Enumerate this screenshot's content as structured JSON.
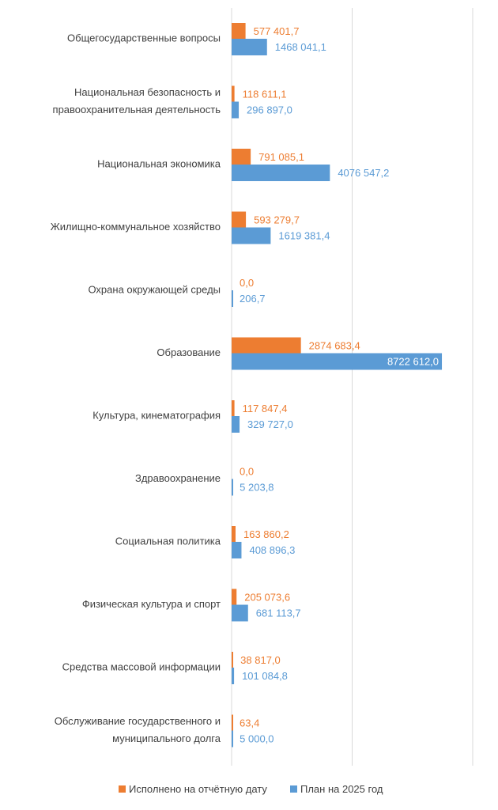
{
  "chart_data": {
    "type": "bar",
    "orientation": "horizontal",
    "categories": [
      [
        "Общегосударственные вопросы"
      ],
      [
        "Национальная безопасность и",
        "правоохранительная деятельность"
      ],
      [
        "Национальная экономика"
      ],
      [
        "Жилищно-коммунальное хозяйство"
      ],
      [
        "Охрана окружающей среды"
      ],
      [
        "Образование"
      ],
      [
        "Культура, кинематография"
      ],
      [
        "Здравоохранение"
      ],
      [
        "Социальная политика"
      ],
      [
        "Физическая культура и спорт"
      ],
      [
        "Средства массовой информации"
      ],
      [
        "Обслуживание государственного и",
        "муниципального долга"
      ]
    ],
    "series": [
      {
        "name": "Исполнено на отчётную дату",
        "color": "#ED7D31",
        "values": [
          577401.7,
          118611.1,
          791085.1,
          593279.7,
          0.0,
          2874683.4,
          117847.4,
          0.0,
          163860.2,
          205073.6,
          38817.0,
          63.4
        ],
        "labels": [
          "577 401,7",
          "118 611,1",
          "791 085,1",
          "593 279,7",
          "0,0",
          "2874 683,4",
          "117 847,4",
          "0,0",
          "163 860,2",
          "205 073,6",
          "38 817,0",
          "63,4"
        ]
      },
      {
        "name": "План на 2025 год",
        "color": "#5B9BD5",
        "values": [
          1468041.1,
          296897.0,
          4076547.2,
          1619381.4,
          206.7,
          8722612.0,
          329727.0,
          5203.8,
          408896.3,
          681113.7,
          101084.8,
          5000.0
        ],
        "labels": [
          "1468 041,1",
          "296 897,0",
          "4076 547,2",
          "1619 381,4",
          "206,7",
          "8722 612,0",
          "329 727,0",
          "5 203,8",
          "408 896,3",
          "681 113,7",
          "101 084,8",
          "5 000,0"
        ]
      }
    ],
    "xlim": [
      0,
      10000000
    ],
    "grid": true,
    "legend": "bottom"
  }
}
